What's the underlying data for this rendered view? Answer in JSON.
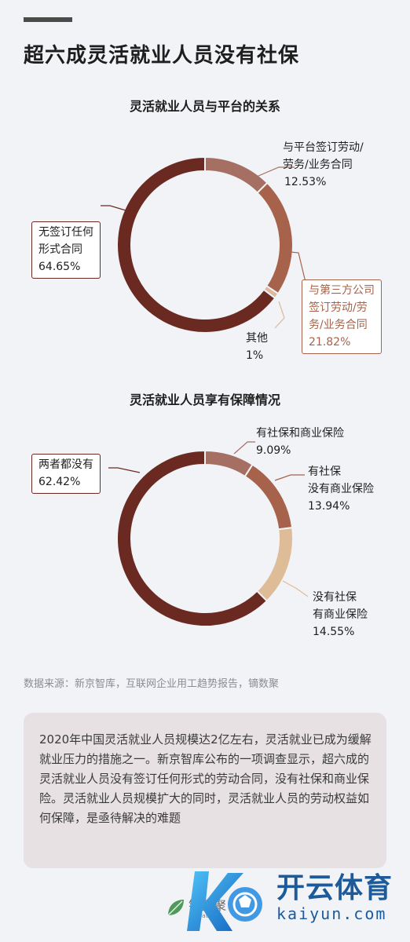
{
  "title": "超六成灵活就业人员没有社保",
  "chart_data": [
    {
      "type": "pie",
      "donut": true,
      "title": "灵活就业人员与平台的关系",
      "slices": [
        {
          "label": [
            "与平台签订劳动/",
            "劳务/业务合同"
          ],
          "value": 12.53,
          "value_text": "12.53%",
          "color": "#a66f64"
        },
        {
          "label": [
            "与第三方公司",
            "签订劳动/劳",
            "务/业务合同"
          ],
          "value": 21.82,
          "value_text": "21.82%",
          "color": "#a6624a"
        },
        {
          "label": [
            "其他"
          ],
          "value": 1,
          "value_text": "1%",
          "color": "#dab99e"
        },
        {
          "label": [
            "无签订任何",
            "形式合同"
          ],
          "value": 64.65,
          "value_text": "64.65%",
          "color": "#6a2a22"
        }
      ]
    },
    {
      "type": "pie",
      "donut": true,
      "title": "灵活就业人员享有保障情况",
      "slices": [
        {
          "label": [
            "有社保和商业保险"
          ],
          "value": 9.09,
          "value_text": "9.09%",
          "color": "#a66f64"
        },
        {
          "label": [
            "有社保",
            "没有商业保险"
          ],
          "value": 13.94,
          "value_text": "13.94%",
          "color": "#a6624a"
        },
        {
          "label": [
            "没有社保",
            "有商业保险"
          ],
          "value": 14.55,
          "value_text": "14.55%",
          "color": "#dfbc98"
        },
        {
          "label": [
            "两者都没有"
          ],
          "value": 62.42,
          "value_text": "62.42%",
          "color": "#6a2a22"
        }
      ]
    }
  ],
  "source": "数据来源：新京智库，互联网企业用工趋势报告，镝数聚",
  "summary": "2020年中国灵活就业人员规模达2亿左右，灵活就业已成为缓解就业压力的措施之一。新京智库公布的一项调查显示，超六成的灵活就业人员没有签订任何形式的劳动合同，没有社保和商业保险。灵活就业人员规模扩大的同时，灵活就业人员的劳动权益如何保障，是亟待解决的难题",
  "watermark": {
    "left_text": "镝数聚",
    "left_small": "dydata.io",
    "brand_cn": "开云体育",
    "brand_en": "kaiyun.com"
  }
}
